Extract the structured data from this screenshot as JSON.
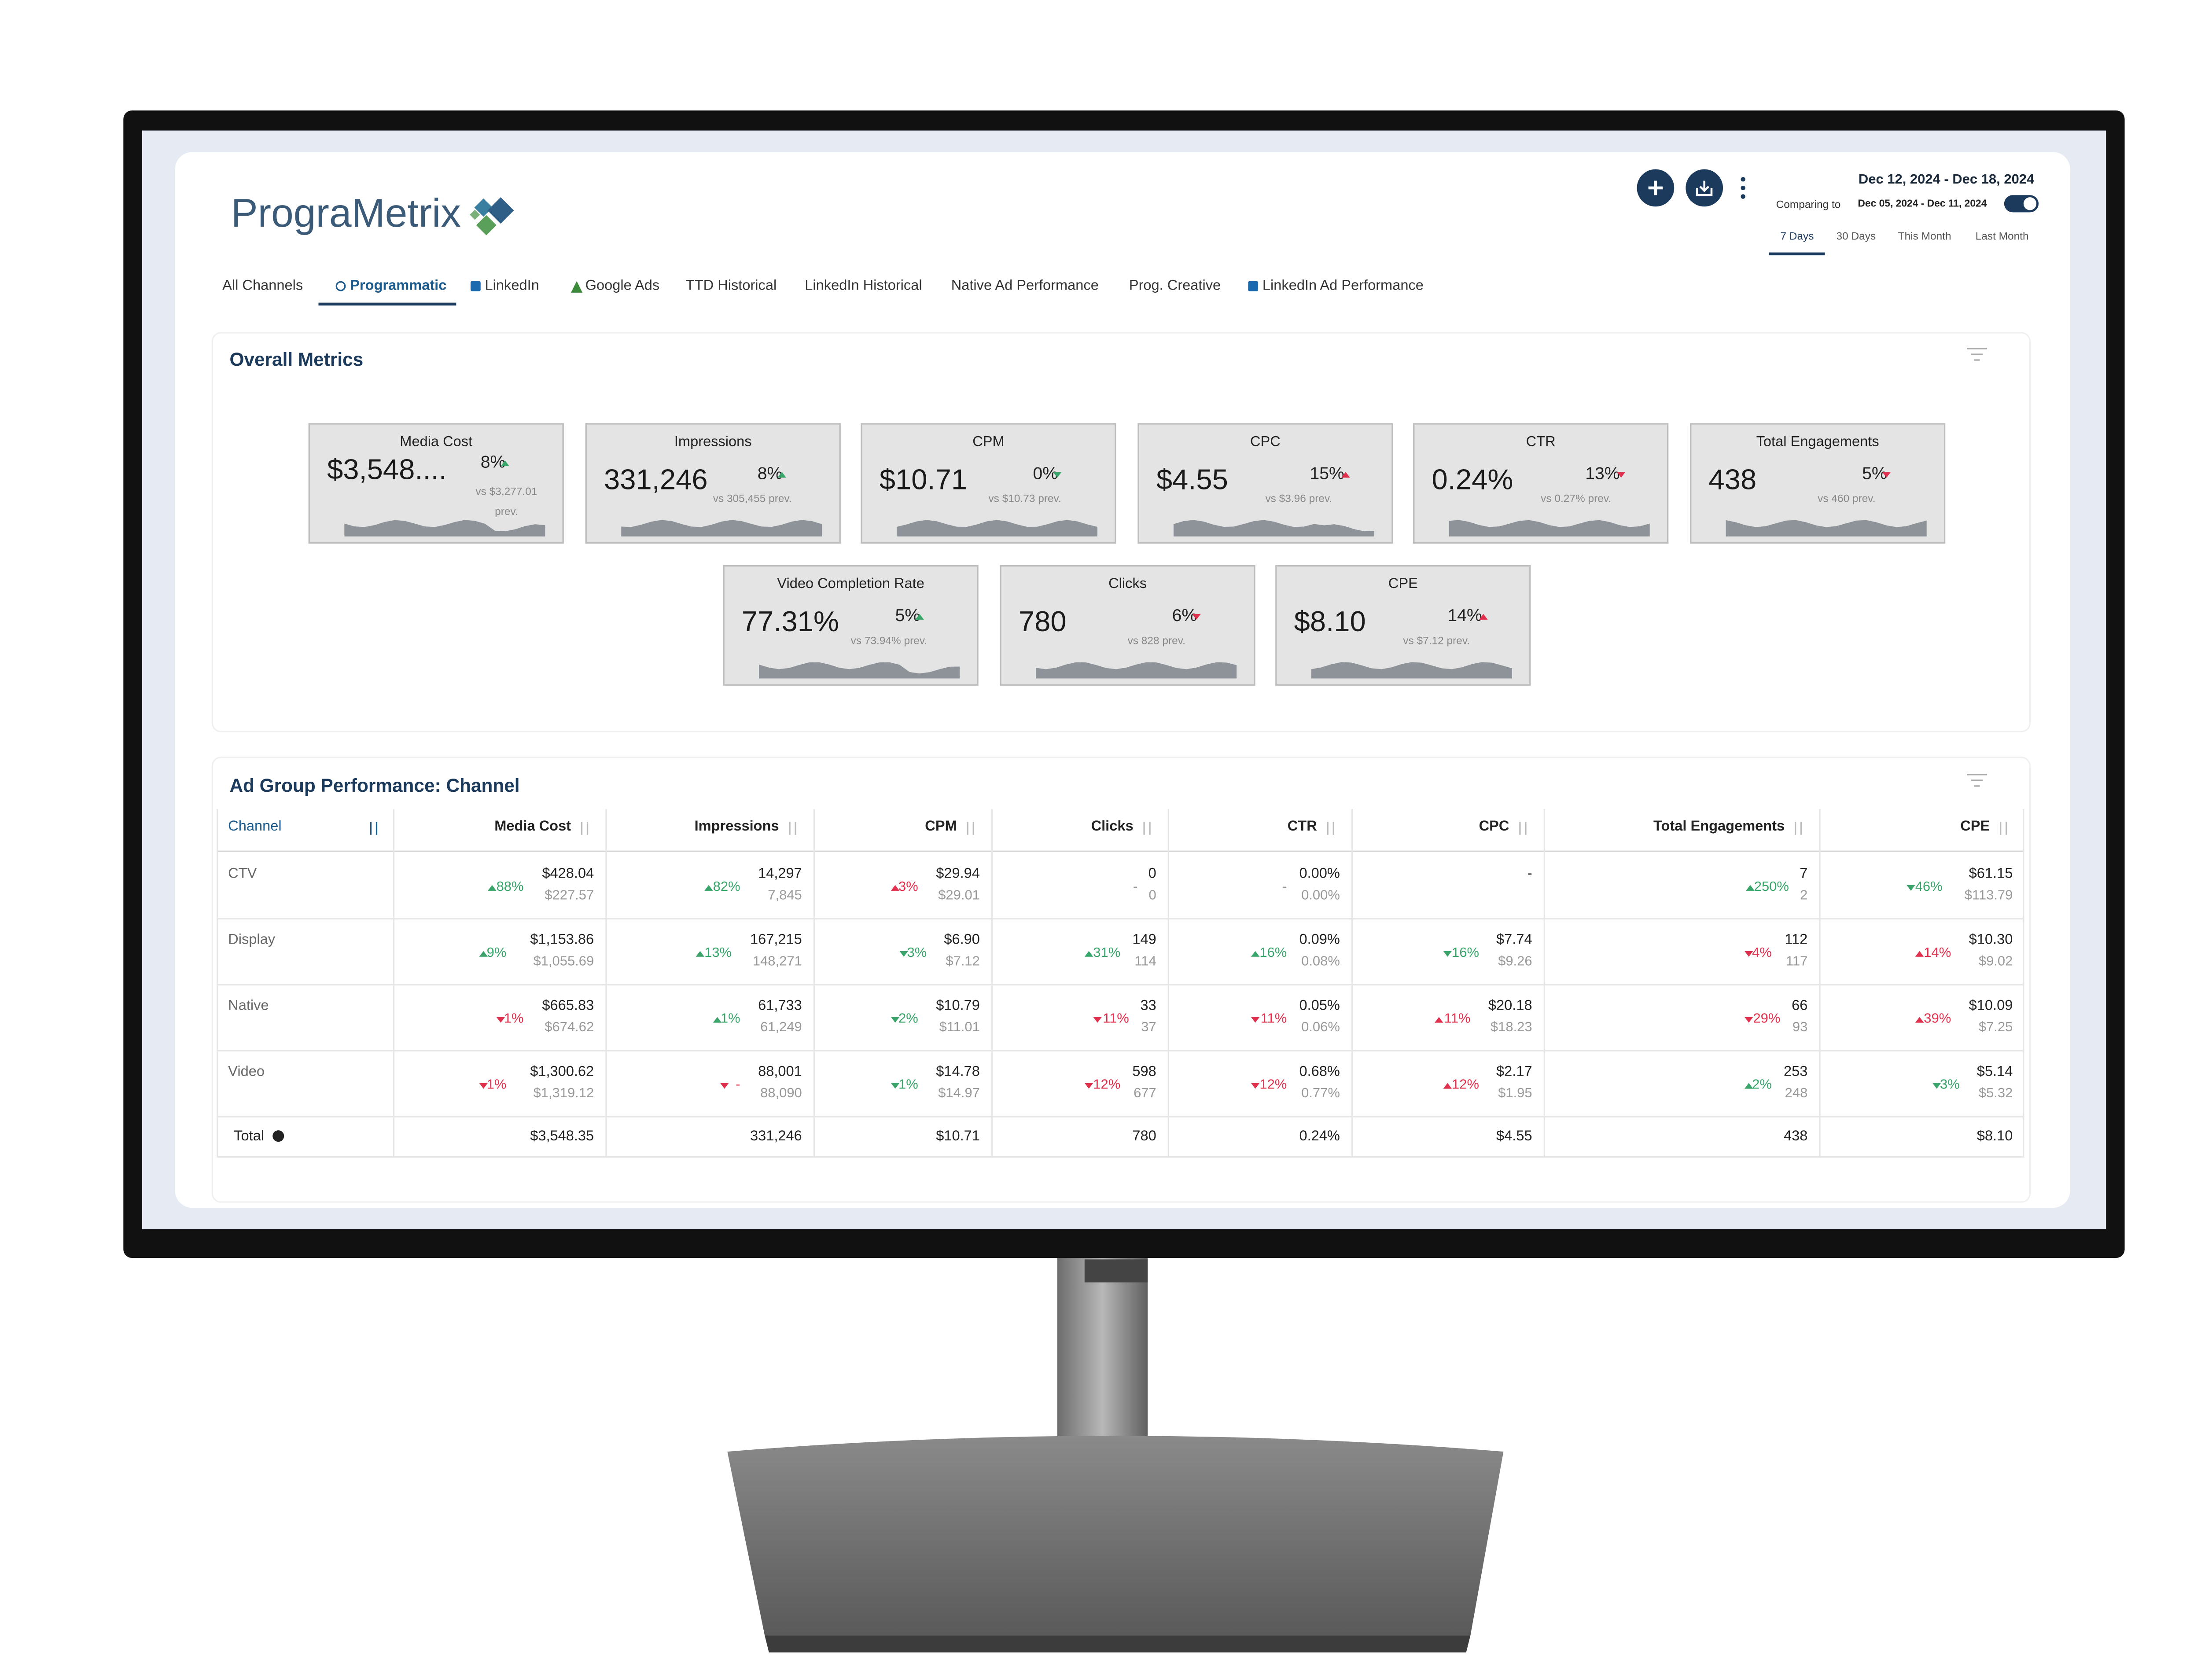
{
  "header": {
    "brand": "PrograMetrix",
    "date_range": "Dec 12, 2024 - Dec 18, 2024",
    "comparing_label": "Comparing to",
    "comparing_range": "Dec 05, 2024 - Dec 11, 2024",
    "periods": [
      "7 Days",
      "30 Days",
      "This Month",
      "Last Month"
    ]
  },
  "nav": {
    "tabs": [
      "All Channels",
      "Programmatic",
      "LinkedIn",
      "Google Ads",
      "TTD Historical",
      "LinkedIn Historical",
      "Native Ad Performance",
      "Prog. Creative",
      "LinkedIn Ad Performance"
    ]
  },
  "metrics": {
    "title": "Overall Metrics",
    "cards": [
      {
        "title": "Media Cost",
        "value": "$3,548....",
        "change": "8%",
        "dir": "up",
        "color": "#3aa56b",
        "prev": "vs $3,277.01 prev."
      },
      {
        "title": "Impressions",
        "value": "331,246",
        "change": "8%",
        "dir": "up",
        "color": "#3aa56b",
        "prev": "vs 305,455 prev."
      },
      {
        "title": "CPM",
        "value": "$10.71",
        "change": "0%",
        "dir": "down",
        "color": "#3aa56b",
        "prev": "vs $10.73 prev."
      },
      {
        "title": "CPC",
        "value": "$4.55",
        "change": "15%",
        "dir": "up",
        "color": "#e0304e",
        "prev": "vs $3.96 prev."
      },
      {
        "title": "CTR",
        "value": "0.24%",
        "change": "13%",
        "dir": "down",
        "color": "#e0304e",
        "prev": "vs 0.27% prev."
      },
      {
        "title": "Total Engagements",
        "value": "438",
        "change": "5%",
        "dir": "down",
        "color": "#e0304e",
        "prev": "vs 460 prev."
      },
      {
        "title": "Video Completion Rate",
        "value": "77.31%",
        "change": "5%",
        "dir": "up",
        "color": "#3aa56b",
        "prev": "vs 73.94% prev."
      },
      {
        "title": "Clicks",
        "value": "780",
        "change": "6%",
        "dir": "down",
        "color": "#e0304e",
        "prev": "vs 828 prev."
      },
      {
        "title": "CPE",
        "value": "$8.10",
        "change": "14%",
        "dir": "up",
        "color": "#e0304e",
        "prev": "vs $7.12 prev."
      }
    ]
  },
  "table": {
    "title": "Ad Group Performance: Channel",
    "columns": [
      "Channel",
      "Media Cost",
      "Impressions",
      "CPM",
      "Clicks",
      "CTR",
      "CPC",
      "Total Engagements",
      "CPE"
    ],
    "rows": [
      {
        "label": "CTV",
        "cells": [
          {
            "value": "$428.04",
            "prev": "$227.57",
            "change": "88%",
            "dir": "up",
            "color": "#3aa56b"
          },
          {
            "value": "14,297",
            "prev": "7,845",
            "change": "82%",
            "dir": "up",
            "color": "#3aa56b"
          },
          {
            "value": "$29.94",
            "prev": "$29.01",
            "change": "3%",
            "dir": "up",
            "color": "#e0304e"
          },
          {
            "value": "0",
            "prev": "0",
            "change": "-",
            "color": "#999999"
          },
          {
            "value": "0.00%",
            "prev": "0.00%",
            "change": "-",
            "color": "#999999"
          },
          {
            "value": "-"
          },
          {
            "value": "7",
            "prev": "2",
            "change": "250%",
            "dir": "up",
            "color": "#3aa56b"
          },
          {
            "value": "$61.15",
            "prev": "$113.79",
            "change": "46%",
            "dir": "down",
            "color": "#3aa56b"
          }
        ]
      },
      {
        "label": "Display",
        "cells": [
          {
            "value": "$1,153.86",
            "prev": "$1,055.69",
            "change": "9%",
            "dir": "up",
            "color": "#3aa56b"
          },
          {
            "value": "167,215",
            "prev": "148,271",
            "change": "13%",
            "dir": "up",
            "color": "#3aa56b"
          },
          {
            "value": "$6.90",
            "prev": "$7.12",
            "change": "3%",
            "dir": "down",
            "color": "#3aa56b"
          },
          {
            "value": "149",
            "prev": "114",
            "change": "31%",
            "dir": "up",
            "color": "#3aa56b"
          },
          {
            "value": "0.09%",
            "prev": "0.08%",
            "change": "16%",
            "dir": "up",
            "color": "#3aa56b"
          },
          {
            "value": "$7.74",
            "prev": "$9.26",
            "change": "16%",
            "dir": "down",
            "color": "#3aa56b"
          },
          {
            "value": "112",
            "prev": "117",
            "change": "4%",
            "dir": "down",
            "color": "#e0304e"
          },
          {
            "value": "$10.30",
            "prev": "$9.02",
            "change": "14%",
            "dir": "up",
            "color": "#e0304e"
          }
        ]
      },
      {
        "label": "Native",
        "cells": [
          {
            "value": "$665.83",
            "prev": "$674.62",
            "change": "1%",
            "dir": "down",
            "color": "#e0304e"
          },
          {
            "value": "61,733",
            "prev": "61,249",
            "change": "1%",
            "dir": "up",
            "color": "#3aa56b"
          },
          {
            "value": "$10.79",
            "prev": "$11.01",
            "change": "2%",
            "dir": "down",
            "color": "#3aa56b"
          },
          {
            "value": "33",
            "prev": "37",
            "change": "11%",
            "dir": "down",
            "color": "#e0304e"
          },
          {
            "value": "0.05%",
            "prev": "0.06%",
            "change": "11%",
            "dir": "down",
            "color": "#e0304e"
          },
          {
            "value": "$20.18",
            "prev": "$18.23",
            "change": "11%",
            "dir": "up",
            "color": "#e0304e"
          },
          {
            "value": "66",
            "prev": "93",
            "change": "29%",
            "dir": "down",
            "color": "#e0304e"
          },
          {
            "value": "$10.09",
            "prev": "$7.25",
            "change": "39%",
            "dir": "up",
            "color": "#e0304e"
          }
        ]
      },
      {
        "label": "Video",
        "cells": [
          {
            "value": "$1,300.62",
            "prev": "$1,319.12",
            "change": "1%",
            "dir": "down",
            "color": "#e0304e"
          },
          {
            "value": "88,001",
            "prev": "88,090",
            "change": "-",
            "dir": "down",
            "color": "#e0304e"
          },
          {
            "value": "$14.78",
            "prev": "$14.97",
            "change": "1%",
            "dir": "down",
            "color": "#3aa56b"
          },
          {
            "value": "598",
            "prev": "677",
            "change": "12%",
            "dir": "down",
            "color": "#e0304e"
          },
          {
            "value": "0.68%",
            "prev": "0.77%",
            "change": "12%",
            "dir": "down",
            "color": "#e0304e"
          },
          {
            "value": "$2.17",
            "prev": "$1.95",
            "change": "12%",
            "dir": "up",
            "color": "#e0304e"
          },
          {
            "value": "253",
            "prev": "248",
            "change": "2%",
            "dir": "up",
            "color": "#3aa56b"
          },
          {
            "value": "$5.14",
            "prev": "$5.32",
            "change": "3%",
            "dir": "down",
            "color": "#3aa56b"
          }
        ]
      }
    ],
    "total": {
      "label": "Total",
      "values": [
        "$3,548.35",
        "331,246",
        "$10.71",
        "780",
        "0.24%",
        "$4.55",
        "438",
        "$8.10"
      ]
    }
  }
}
